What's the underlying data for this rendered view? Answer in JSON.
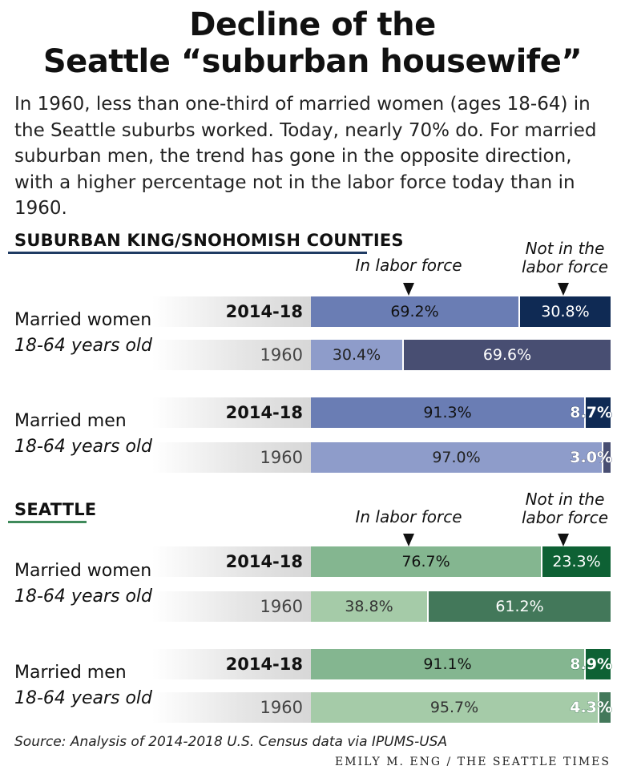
{
  "title_line1": "Decline of the",
  "title_line2": "Seattle “suburban housewife”",
  "subtitle": "In 1960, less than one-third of married women (ages 18-64) in the Seattle suburbs worked. Today, nearly 70% do. For married suburban men, the trend has gone in the opposite direction, with a higher percentage not in the labor force today than in 1960.",
  "col_in": "In labor force",
  "col_not_line1": "Not in the",
  "col_not_line2": "labor force",
  "source": "Source: Analysis of 2014-2018 U.S. Census data via IPUMS-USA",
  "credit": "EMILY M. ENG / THE SEATTLE TIMES",
  "colors": {
    "suburban_recent_in": "#6a7db4",
    "suburban_recent_out": "#0f2a54",
    "suburban_old_in": "#8e9cca",
    "suburban_old_out": "#484e72",
    "suburban_rule": "#1f3b63",
    "seattle_recent_in": "#84b690",
    "seattle_recent_out": "#0e6134",
    "seattle_old_in": "#a5cba8",
    "seattle_old_out": "#43785a",
    "seattle_rule": "#3f8a5b"
  },
  "chart_data": {
    "type": "bar",
    "orientation": "horizontal",
    "stacked": true,
    "unit": "%",
    "series_names": [
      "In labor force",
      "Not in the labor force"
    ],
    "sections": [
      {
        "title": "SUBURBAN KING/SNOHOMISH COUNTIES",
        "groups": [
          {
            "label": "Married women",
            "sublabel": "18-64 years old",
            "rows": [
              {
                "year": "2014-18",
                "in": 69.2,
                "out": 30.8,
                "in_label": "69.2%",
                "out_label": "30.8%"
              },
              {
                "year": "1960",
                "in": 30.4,
                "out": 69.6,
                "in_label": "30.4%",
                "out_label": "69.6%"
              }
            ]
          },
          {
            "label": "Married men",
            "sublabel": "18-64 years old",
            "rows": [
              {
                "year": "2014-18",
                "in": 91.3,
                "out": 8.7,
                "in_label": "91.3%",
                "out_label": "8.7%"
              },
              {
                "year": "1960",
                "in": 97.0,
                "out": 3.0,
                "in_label": "97.0%",
                "out_label": "3.0%"
              }
            ]
          }
        ]
      },
      {
        "title": "SEATTLE",
        "groups": [
          {
            "label": "Married women",
            "sublabel": "18-64 years old",
            "rows": [
              {
                "year": "2014-18",
                "in": 76.7,
                "out": 23.3,
                "in_label": "76.7%",
                "out_label": "23.3%"
              },
              {
                "year": "1960",
                "in": 38.8,
                "out": 61.2,
                "in_label": "38.8%",
                "out_label": "61.2%"
              }
            ]
          },
          {
            "label": "Married men",
            "sublabel": "18-64 years old",
            "rows": [
              {
                "year": "2014-18",
                "in": 91.1,
                "out": 8.9,
                "in_label": "91.1%",
                "out_label": "8.9%"
              },
              {
                "year": "1960",
                "in": 95.7,
                "out": 4.3,
                "in_label": "95.7%",
                "out_label": "4.3%"
              }
            ]
          }
        ]
      }
    ]
  }
}
